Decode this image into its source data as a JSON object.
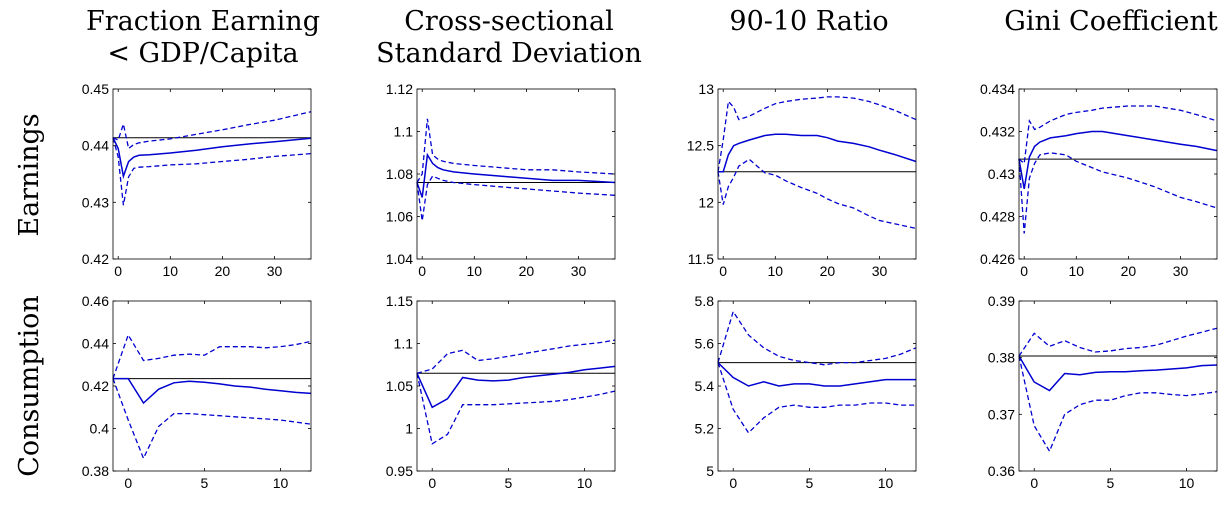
{
  "column_titles": [
    [
      "Fraction Earning",
      "< GDP/Capita"
    ],
    [
      "Cross-sectional",
      "Standard Deviation"
    ],
    [
      "90-10 Ratio"
    ],
    [
      "Gini Coefficient"
    ]
  ],
  "row_labels": [
    "Earnings",
    "Consumption"
  ],
  "colors": {
    "line": "#0000d0",
    "steady_state": "#000000"
  },
  "chart_data": [
    {
      "type": "line",
      "row": 0,
      "col": 0,
      "xlim": [
        -1,
        37
      ],
      "ylim": [
        0.42,
        0.45
      ],
      "xticks": [
        0,
        10,
        20,
        30
      ],
      "yticks": [
        0.42,
        0.43,
        0.44,
        0.45
      ],
      "ytick_labels": [
        "0.42",
        "0.43",
        "0.44",
        "0.45"
      ],
      "steady_state": 0.4414,
      "x": [
        -1,
        0,
        1,
        2,
        3,
        4,
        6,
        10,
        15,
        20,
        25,
        30,
        37
      ],
      "series": [
        {
          "name": "",
          "style": "solid",
          "values": [
            0.4414,
            0.4395,
            0.4346,
            0.4372,
            0.438,
            0.4383,
            0.4384,
            0.4387,
            0.4392,
            0.4398,
            0.4403,
            0.4407,
            0.4413
          ]
        },
        {
          "name": "",
          "style": "dashed",
          "values": [
            0.4414,
            0.441,
            0.4438,
            0.4395,
            0.4402,
            0.4405,
            0.4408,
            0.4412,
            0.442,
            0.4428,
            0.4437,
            0.4445,
            0.446
          ]
        },
        {
          "name": "",
          "style": "dashed",
          "values": [
            0.4414,
            0.438,
            0.4295,
            0.4345,
            0.436,
            0.4362,
            0.4363,
            0.4366,
            0.4368,
            0.4372,
            0.4376,
            0.4381,
            0.4386
          ]
        }
      ]
    },
    {
      "type": "line",
      "row": 0,
      "col": 1,
      "xlim": [
        -1,
        37
      ],
      "ylim": [
        1.04,
        1.12
      ],
      "xticks": [
        0,
        10,
        20,
        30
      ],
      "yticks": [
        1.04,
        1.06,
        1.08,
        1.1,
        1.12
      ],
      "ytick_labels": [
        "1.04",
        "1.06",
        "1.08",
        "1.1",
        "1.12"
      ],
      "steady_state": 1.076,
      "x": [
        -1,
        0,
        1,
        2,
        3,
        4,
        6,
        10,
        15,
        20,
        25,
        30,
        37
      ],
      "series": [
        {
          "name": "",
          "style": "solid",
          "values": [
            1.076,
            1.069,
            1.089,
            1.085,
            1.083,
            1.082,
            1.081,
            1.08,
            1.079,
            1.078,
            1.077,
            1.077,
            1.076
          ]
        },
        {
          "name": "",
          "style": "dashed",
          "values": [
            1.076,
            1.08,
            1.106,
            1.089,
            1.087,
            1.086,
            1.085,
            1.084,
            1.083,
            1.082,
            1.082,
            1.081,
            1.08
          ]
        },
        {
          "name": "",
          "style": "dashed",
          "values": [
            1.076,
            1.058,
            1.075,
            1.079,
            1.078,
            1.077,
            1.076,
            1.075,
            1.074,
            1.073,
            1.072,
            1.071,
            1.07
          ]
        }
      ]
    },
    {
      "type": "line",
      "row": 0,
      "col": 2,
      "xlim": [
        -1,
        37
      ],
      "ylim": [
        11.5,
        13
      ],
      "xticks": [
        0,
        10,
        20,
        30
      ],
      "yticks": [
        11.5,
        12,
        12.5,
        13
      ],
      "ytick_labels": [
        "11.5",
        "12",
        "12.5",
        "13"
      ],
      "steady_state": 12.27,
      "x": [
        -1,
        0,
        1,
        2,
        3,
        5,
        8,
        10,
        12,
        15,
        18,
        20,
        22,
        25,
        28,
        30,
        33,
        37
      ],
      "series": [
        {
          "name": "",
          "style": "solid",
          "values": [
            12.27,
            12.27,
            12.42,
            12.5,
            12.52,
            12.55,
            12.59,
            12.6,
            12.6,
            12.59,
            12.59,
            12.57,
            12.54,
            12.52,
            12.49,
            12.46,
            12.42,
            12.36
          ]
        },
        {
          "name": "",
          "style": "dashed",
          "values": [
            12.27,
            12.55,
            12.89,
            12.84,
            12.73,
            12.76,
            12.83,
            12.87,
            12.89,
            12.91,
            12.92,
            12.93,
            12.93,
            12.92,
            12.89,
            12.86,
            12.81,
            12.73
          ]
        },
        {
          "name": "",
          "style": "dashed",
          "values": [
            12.27,
            11.98,
            12.14,
            12.22,
            12.32,
            12.38,
            12.26,
            12.24,
            12.19,
            12.13,
            12.08,
            12.03,
            11.99,
            11.95,
            11.88,
            11.84,
            11.81,
            11.77
          ]
        }
      ]
    },
    {
      "type": "line",
      "row": 0,
      "col": 3,
      "xlim": [
        -1,
        37
      ],
      "ylim": [
        0.426,
        0.434
      ],
      "xticks": [
        0,
        10,
        20,
        30
      ],
      "yticks": [
        0.426,
        0.428,
        0.43,
        0.432,
        0.434
      ],
      "ytick_labels": [
        "0.426",
        "0.428",
        "0.43",
        "0.432",
        "0.434"
      ],
      "steady_state": 0.4307,
      "x": [
        -1,
        0,
        1,
        2,
        3,
        5,
        8,
        10,
        13,
        15,
        20,
        25,
        30,
        33,
        37
      ],
      "series": [
        {
          "name": "",
          "style": "solid",
          "values": [
            0.4307,
            0.4293,
            0.4308,
            0.4313,
            0.4315,
            0.4317,
            0.4318,
            0.4319,
            0.432,
            0.432,
            0.4318,
            0.4316,
            0.4314,
            0.4313,
            0.4311
          ]
        },
        {
          "name": "",
          "style": "dashed",
          "values": [
            0.4307,
            0.4305,
            0.4325,
            0.4321,
            0.4322,
            0.4325,
            0.4328,
            0.4329,
            0.433,
            0.4331,
            0.4332,
            0.4332,
            0.433,
            0.4328,
            0.4325
          ]
        },
        {
          "name": "",
          "style": "dashed",
          "values": [
            0.4307,
            0.4272,
            0.4298,
            0.4305,
            0.4309,
            0.431,
            0.4309,
            0.4306,
            0.4303,
            0.4301,
            0.4298,
            0.4294,
            0.4289,
            0.4287,
            0.4284
          ]
        }
      ]
    },
    {
      "type": "line",
      "row": 1,
      "col": 0,
      "xlim": [
        -1,
        12
      ],
      "ylim": [
        0.38,
        0.46
      ],
      "xticks": [
        0,
        5,
        10
      ],
      "yticks": [
        0.38,
        0.4,
        0.42,
        0.44,
        0.46
      ],
      "ytick_labels": [
        "0.38",
        "0.4",
        "0.42",
        "0.44",
        "0.46"
      ],
      "steady_state": 0.4235,
      "x": [
        -1,
        0,
        1,
        2,
        3,
        4,
        5,
        6,
        7,
        8,
        9,
        10,
        11,
        12
      ],
      "series": [
        {
          "name": "",
          "style": "solid",
          "values": [
            0.4235,
            0.4235,
            0.412,
            0.4185,
            0.4215,
            0.4222,
            0.4218,
            0.421,
            0.42,
            0.4195,
            0.4185,
            0.4178,
            0.417,
            0.4165
          ]
        },
        {
          "name": "",
          "style": "dashed",
          "values": [
            0.4235,
            0.444,
            0.432,
            0.433,
            0.4345,
            0.435,
            0.4345,
            0.4385,
            0.4385,
            0.4385,
            0.438,
            0.4385,
            0.4395,
            0.441
          ]
        },
        {
          "name": "",
          "style": "dashed",
          "values": [
            0.4235,
            0.404,
            0.386,
            0.401,
            0.407,
            0.407,
            0.4065,
            0.406,
            0.4055,
            0.405,
            0.4045,
            0.404,
            0.403,
            0.402
          ]
        }
      ]
    },
    {
      "type": "line",
      "row": 1,
      "col": 1,
      "xlim": [
        -1,
        12
      ],
      "ylim": [
        0.95,
        1.15
      ],
      "xticks": [
        0,
        5,
        10
      ],
      "yticks": [
        0.95,
        1,
        1.05,
        1.1,
        1.15
      ],
      "ytick_labels": [
        "0.95",
        "1",
        "1.05",
        "1.1",
        "1.15"
      ],
      "steady_state": 1.065,
      "x": [
        -1,
        0,
        1,
        2,
        3,
        4,
        5,
        6,
        7,
        8,
        9,
        10,
        11,
        12
      ],
      "series": [
        {
          "name": "",
          "style": "solid",
          "values": [
            1.065,
            1.025,
            1.035,
            1.06,
            1.057,
            1.056,
            1.057,
            1.06,
            1.062,
            1.064,
            1.066,
            1.069,
            1.071,
            1.073
          ]
        },
        {
          "name": "",
          "style": "dashed",
          "values": [
            1.065,
            1.07,
            1.088,
            1.092,
            1.08,
            1.082,
            1.085,
            1.088,
            1.091,
            1.094,
            1.097,
            1.099,
            1.101,
            1.104
          ]
        },
        {
          "name": "",
          "style": "dashed",
          "values": [
            1.065,
            0.982,
            0.993,
            1.028,
            1.028,
            1.028,
            1.029,
            1.03,
            1.031,
            1.032,
            1.034,
            1.037,
            1.04,
            1.044
          ]
        }
      ]
    },
    {
      "type": "line",
      "row": 1,
      "col": 2,
      "xlim": [
        -1,
        12
      ],
      "ylim": [
        5,
        5.8
      ],
      "xticks": [
        0,
        5,
        10
      ],
      "yticks": [
        5,
        5.2,
        5.4,
        5.6,
        5.8
      ],
      "ytick_labels": [
        "5",
        "5.2",
        "5.4",
        "5.6",
        "5.8"
      ],
      "steady_state": 5.51,
      "x": [
        -1,
        0,
        1,
        2,
        3,
        4,
        5,
        6,
        7,
        8,
        9,
        10,
        11,
        12
      ],
      "series": [
        {
          "name": "",
          "style": "solid",
          "values": [
            5.51,
            5.44,
            5.4,
            5.42,
            5.4,
            5.41,
            5.41,
            5.4,
            5.4,
            5.41,
            5.42,
            5.43,
            5.43,
            5.43
          ]
        },
        {
          "name": "",
          "style": "dashed",
          "values": [
            5.51,
            5.75,
            5.64,
            5.58,
            5.54,
            5.52,
            5.51,
            5.5,
            5.51,
            5.51,
            5.52,
            5.53,
            5.55,
            5.58
          ]
        },
        {
          "name": "",
          "style": "dashed",
          "values": [
            5.51,
            5.29,
            5.18,
            5.25,
            5.3,
            5.31,
            5.3,
            5.3,
            5.31,
            5.31,
            5.32,
            5.32,
            5.31,
            5.31
          ]
        }
      ]
    },
    {
      "type": "line",
      "row": 1,
      "col": 3,
      "xlim": [
        -1,
        12
      ],
      "ylim": [
        0.36,
        0.39
      ],
      "xticks": [
        0,
        5,
        10
      ],
      "yticks": [
        0.36,
        0.37,
        0.38,
        0.39
      ],
      "ytick_labels": [
        "0.36",
        "0.37",
        "0.38",
        "0.39"
      ],
      "steady_state": 0.3803,
      "x": [
        -1,
        0,
        1,
        2,
        3,
        4,
        5,
        6,
        7,
        8,
        9,
        10,
        11,
        12
      ],
      "series": [
        {
          "name": "",
          "style": "solid",
          "values": [
            0.3803,
            0.3757,
            0.3742,
            0.3772,
            0.377,
            0.3774,
            0.3775,
            0.3775,
            0.3777,
            0.3778,
            0.378,
            0.3782,
            0.3786,
            0.3787
          ]
        },
        {
          "name": "",
          "style": "dashed",
          "values": [
            0.3803,
            0.3843,
            0.382,
            0.383,
            0.3818,
            0.381,
            0.3812,
            0.3816,
            0.3818,
            0.3822,
            0.383,
            0.3838,
            0.3845,
            0.3852
          ]
        },
        {
          "name": "",
          "style": "dashed",
          "values": [
            0.3803,
            0.368,
            0.3635,
            0.37,
            0.3717,
            0.3725,
            0.3725,
            0.3733,
            0.3738,
            0.3738,
            0.3735,
            0.3733,
            0.3736,
            0.374
          ]
        }
      ]
    }
  ]
}
